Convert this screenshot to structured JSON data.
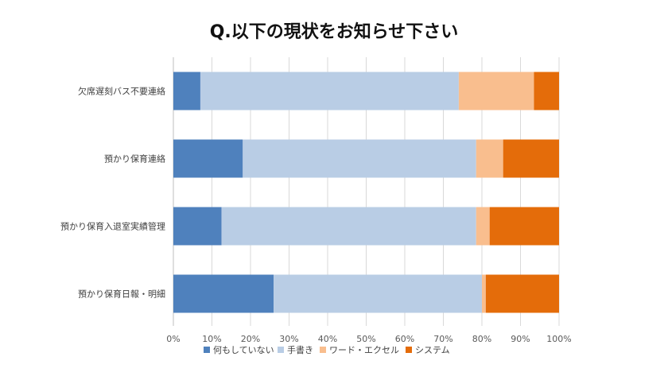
{
  "chart_data": {
    "type": "bar",
    "orientation": "horizontal",
    "stacked": "percent",
    "title": "Q.以下の現状をお知らせ下さい",
    "categories": [
      "欠席遅刻バス不要連絡",
      "預かり保育連絡",
      "預かり保育入退室実績管理",
      "預かり保育日報・明細"
    ],
    "series": [
      {
        "name": "何もしていない",
        "color": "#4f81bd",
        "values": [
          7,
          18,
          12.5,
          26
        ]
      },
      {
        "name": "手書き",
        "color": "#b9cde5",
        "values": [
          67,
          60.5,
          66,
          54
        ]
      },
      {
        "name": "ワード・エクセル",
        "color": "#f9be8e",
        "values": [
          19.5,
          7,
          3.5,
          1
        ]
      },
      {
        "name": "システム",
        "color": "#e46c0a",
        "values": [
          6.5,
          14.5,
          18,
          19
        ]
      }
    ],
    "xlim": [
      0,
      100
    ],
    "xticks": [
      "0%",
      "10%",
      "20%",
      "30%",
      "40%",
      "50%",
      "60%",
      "70%",
      "80%",
      "90%",
      "100%"
    ],
    "grid": true,
    "legend": "bottom"
  }
}
